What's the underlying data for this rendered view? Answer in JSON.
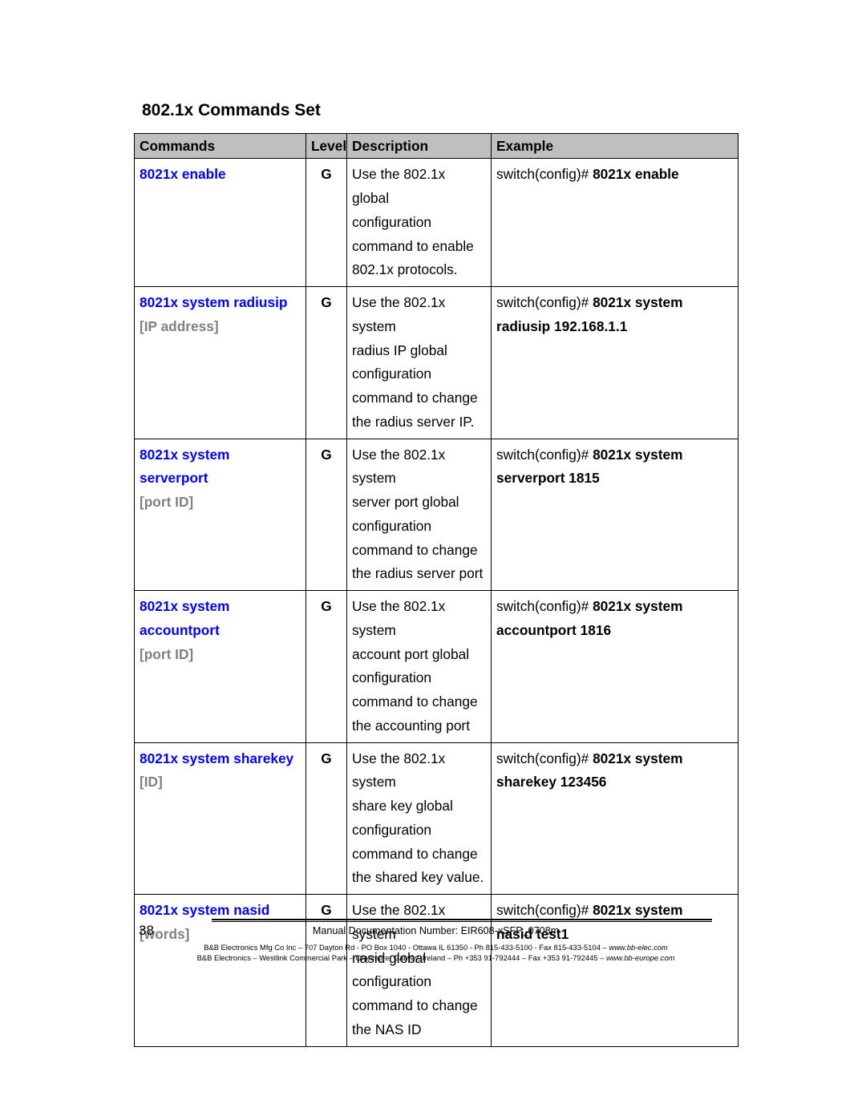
{
  "title": "802.1x Commands Set",
  "columns": [
    "Commands",
    "Level",
    "Description",
    "Example"
  ],
  "rows": [
    {
      "command_lines": [
        {
          "blue": "8021x enable",
          "gray": ""
        }
      ],
      "level": "G",
      "description_lines": [
        "Use the 802.1x global",
        "configuration",
        "command to enable",
        "802.1x protocols."
      ],
      "example_lines": [
        {
          "plain": "switch(config)# ",
          "bold": "8021x enable"
        }
      ]
    },
    {
      "command_lines": [
        {
          "blue": "8021x system radiusip",
          "gray": ""
        },
        {
          "blue": "",
          "gray": "[IP address]"
        }
      ],
      "level": "G",
      "description_lines": [
        "Use the 802.1x system",
        "radius IP global",
        "configuration",
        "command to change",
        "the radius server IP."
      ],
      "example_lines": [
        {
          "plain": "switch(config)# ",
          "bold": "8021x system"
        },
        {
          "plain": "",
          "bold": "radiusip 192.168.1.1"
        }
      ]
    },
    {
      "command_lines": [
        {
          "blue": "8021x system serverport",
          "gray": ""
        },
        {
          "blue": "",
          "gray": "[port ID]"
        }
      ],
      "level": "G",
      "description_lines": [
        "Use the 802.1x system",
        "server port global",
        "configuration",
        "command to change",
        "the radius server port"
      ],
      "example_lines": [
        {
          "plain": "switch(config)# ",
          "bold": "8021x system"
        },
        {
          "plain": "",
          "bold": "serverport    1815"
        }
      ]
    },
    {
      "command_lines": [
        {
          "blue": "8021x system",
          "gray": ""
        },
        {
          "blue": "accountport",
          "gray": ""
        },
        {
          "blue": "",
          "gray": "[port ID]"
        }
      ],
      "level": "G",
      "description_lines": [
        "Use the 802.1x system",
        "account port global",
        "configuration",
        "command to change",
        "the accounting port"
      ],
      "example_lines": [
        {
          "plain": "switch(config)# ",
          "bold": "8021x system"
        },
        {
          "plain": "",
          "bold": "accountport    1816"
        }
      ]
    },
    {
      "command_lines": [
        {
          "blue": "8021x system sharekey",
          "gray": ""
        },
        {
          "blue": "",
          "gray": "[ID]"
        }
      ],
      "level": "G",
      "description_lines": [
        "Use the 802.1x system",
        "share key global",
        "configuration",
        "command to change",
        "the shared key value."
      ],
      "example_lines": [
        {
          "plain": "switch(config)# ",
          "bold": "8021x system"
        },
        {
          "plain": "",
          "bold": "sharekey 123456"
        }
      ]
    },
    {
      "command_lines": [
        {
          "blue": "8021x system nasid",
          "gray": ""
        },
        {
          "blue": "",
          "gray": "[words]"
        }
      ],
      "level": "G",
      "description_lines": [
        "Use the 802.1x system",
        "nasid global",
        "configuration",
        "command to change",
        "the NAS ID"
      ],
      "example_lines": [
        {
          "plain": "switch(config)# ",
          "bold": "8021x system"
        },
        {
          "plain": "",
          "bold": "nasid test1"
        }
      ]
    }
  ],
  "footer": {
    "page_number": "38",
    "doc_line": "Manual Documentation Number: EIR608-xSFP_0708m",
    "tiny1_plain": "B&B Electronics Mfg Co Inc – 707 Dayton Rd - PO Box 1040 - Ottawa IL 61350 - Ph 815-433-5100 - Fax 815-433-5104 – ",
    "tiny1_italic": "www.bb-elec.com",
    "tiny2_plain": "B&B Electronics – Westlink Commercial Park – Oranmore, Galway, Ireland – Ph +353 91-792444 – Fax +353 91-792445 – ",
    "tiny2_italic": "www.bb-europe.com"
  }
}
